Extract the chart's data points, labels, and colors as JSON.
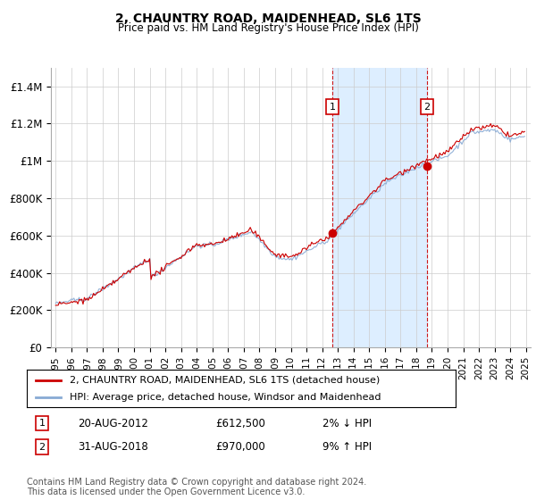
{
  "title": "2, CHAUNTRY ROAD, MAIDENHEAD, SL6 1TS",
  "subtitle": "Price paid vs. HM Land Registry's House Price Index (HPI)",
  "legend_line1": "2, CHAUNTRY ROAD, MAIDENHEAD, SL6 1TS (detached house)",
  "legend_line2": "HPI: Average price, detached house, Windsor and Maidenhead",
  "annotation1_label": "1",
  "annotation1_date": "20-AUG-2012",
  "annotation1_price": "£612,500",
  "annotation1_hpi": "2% ↓ HPI",
  "annotation1_year": 2012.64,
  "annotation1_value": 612500,
  "annotation2_label": "2",
  "annotation2_date": "31-AUG-2018",
  "annotation2_price": "£970,000",
  "annotation2_hpi": "9% ↑ HPI",
  "annotation2_year": 2018.67,
  "annotation2_value": 970000,
  "footer": "Contains HM Land Registry data © Crown copyright and database right 2024.\nThis data is licensed under the Open Government Licence v3.0.",
  "price_line_color": "#cc0000",
  "hpi_line_color": "#88aad4",
  "shaded_color": "#ddeeff",
  "annotation_box_color": "#cc0000",
  "dot_color": "#cc0000",
  "background_color": "#ffffff",
  "grid_color": "#cccccc",
  "ylim": [
    0,
    1500000
  ],
  "yticks": [
    0,
    200000,
    400000,
    600000,
    800000,
    1000000,
    1200000,
    1400000
  ],
  "ytick_labels": [
    "£0",
    "£200K",
    "£400K",
    "£600K",
    "£800K",
    "£1M",
    "£1.2M",
    "£1.4M"
  ],
  "xlim_start": 1994.7,
  "xlim_end": 2025.3
}
